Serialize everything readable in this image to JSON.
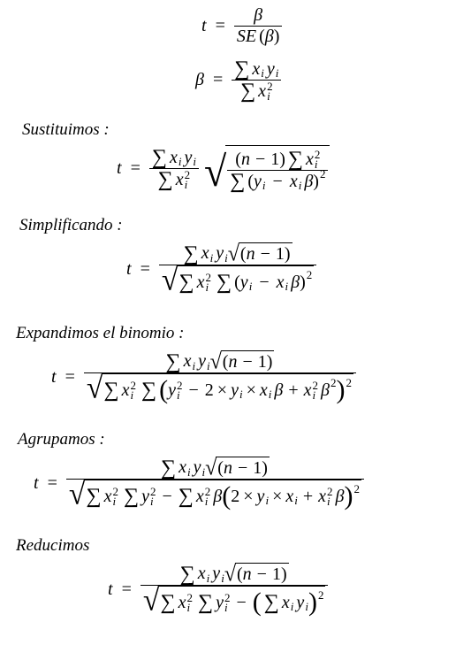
{
  "lines": {
    "l0": "t = β / SE(β)",
    "l1": "β = Σ xᵢ yᵢ / Σ xᵢ²",
    "label_sustituimos": "Sustituimos :",
    "l2": "t = Σ xᵢ yᵢ / Σ xᵢ² · √((n − 1) Σ xᵢ² / Σ (yᵢ − xᵢ β)²)",
    "label_simplificando": "Simplificando :",
    "l3": "t = Σ xᵢ yᵢ √(n − 1) / √(Σ xᵢ² Σ (yᵢ − xᵢ β)²)",
    "label_expandimos": "Expandimos el binomio :",
    "l4": "t = Σ xᵢ yᵢ √(n − 1) / √(Σ xᵢ² Σ (yᵢ² − 2 × yᵢ × xᵢ β + xᵢ² β²)²)",
    "label_agrupamos": "Agrupamos :",
    "l5": "t = Σ xᵢ yᵢ √(n − 1) / √(Σ xᵢ² Σ yᵢ² − Σ xᵢ² β(2 × yᵢ × xᵢ + xᵢ² β)²)",
    "label_reducimos": "Reducimos",
    "l6": "t = Σ xᵢ yᵢ √(n − 1) / √(Σ xᵢ² Σ yᵢ² − (Σ xᵢ yᵢ)²)"
  },
  "symbols": {
    "t": "t",
    "beta": "β",
    "eq": "=",
    "sum": "∑",
    "x": "x",
    "y": "y",
    "n": "n",
    "i": "i",
    "two": "2",
    "one": "1",
    "minus": "−",
    "plus": "+",
    "times": "×",
    "se": "SE",
    "radical": "√"
  }
}
